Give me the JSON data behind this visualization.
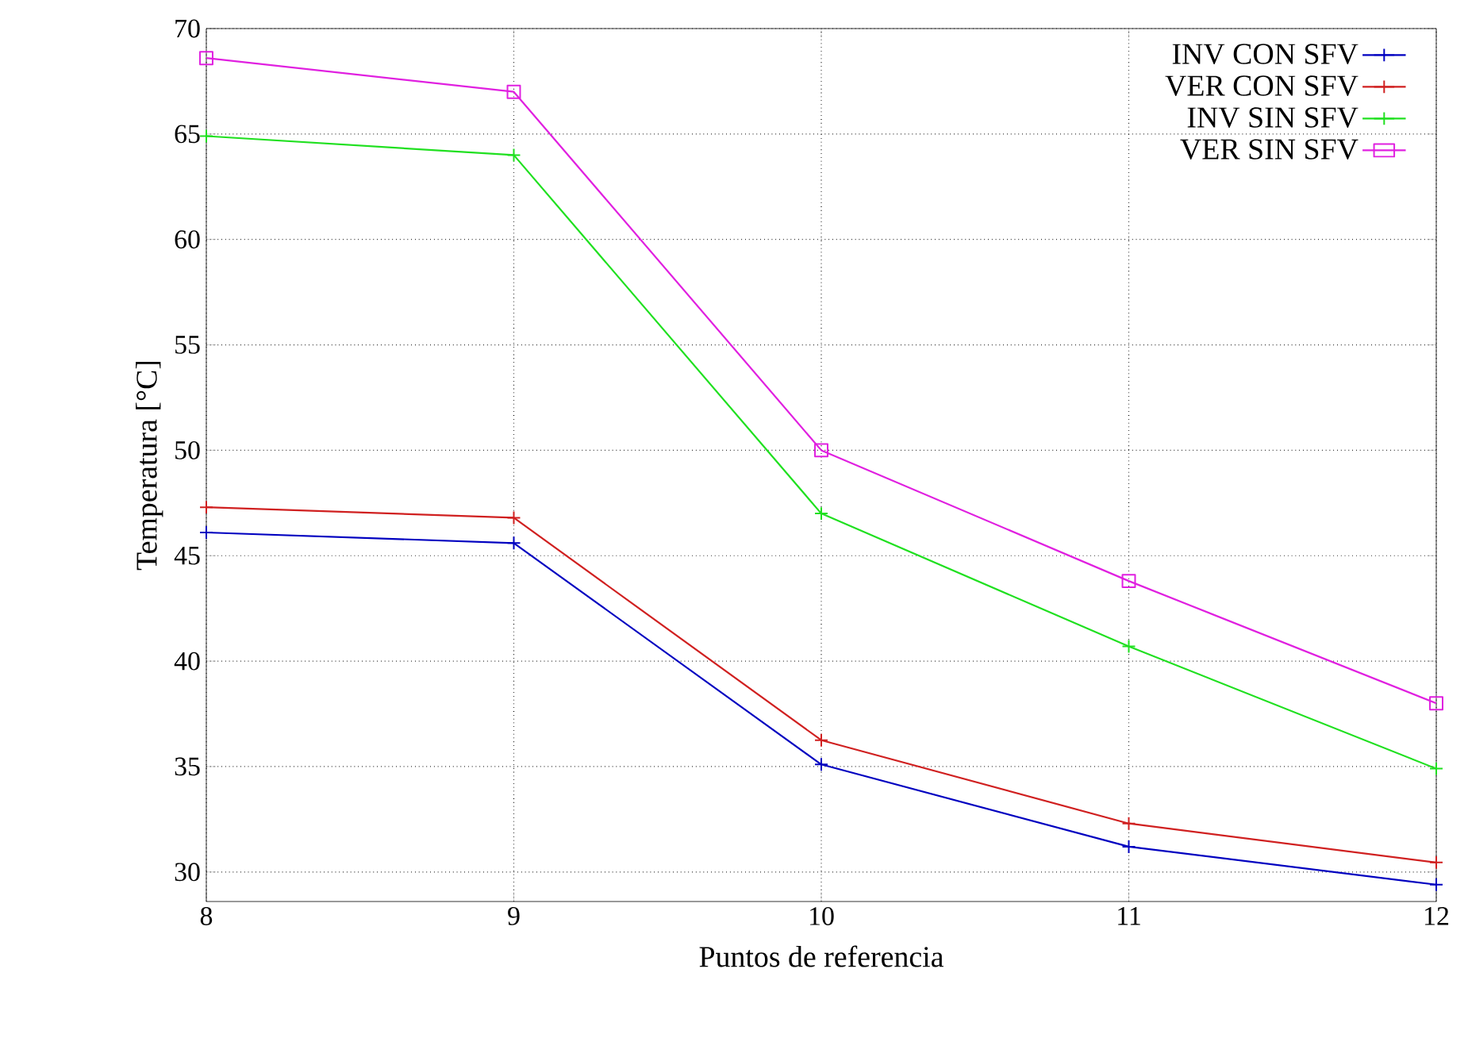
{
  "chart_data": {
    "type": "line",
    "xlabel": "Puntos de referencia",
    "ylabel": "Temperatura [°C]",
    "x": [
      8,
      9,
      10,
      11,
      12
    ],
    "series": [
      {
        "name": "INV CON SFV",
        "color": "#0000c0",
        "marker": "cross",
        "values": [
          46.1,
          45.6,
          35.1,
          31.2,
          29.4
        ]
      },
      {
        "name": "VER CON SFV",
        "color": "#d02020",
        "marker": "cross",
        "values": [
          47.3,
          46.8,
          36.25,
          32.3,
          30.45
        ]
      },
      {
        "name": "INV SIN SFV",
        "color": "#20e020",
        "marker": "cross",
        "values": [
          64.9,
          64.0,
          47.0,
          40.7,
          34.9
        ]
      },
      {
        "name": "VER SIN SFV",
        "color": "#e020e0",
        "marker": "square",
        "values": [
          68.6,
          67.0,
          50.0,
          43.8,
          38.0
        ]
      }
    ],
    "xlim": [
      8,
      12
    ],
    "ylim": [
      28.6,
      70
    ],
    "xticks": [
      8,
      9,
      10,
      11,
      12
    ],
    "yticks": [
      30,
      35,
      40,
      45,
      50,
      55,
      60,
      65,
      70
    ],
    "grid": true,
    "legend": "top right",
    "line_style": "solid"
  }
}
